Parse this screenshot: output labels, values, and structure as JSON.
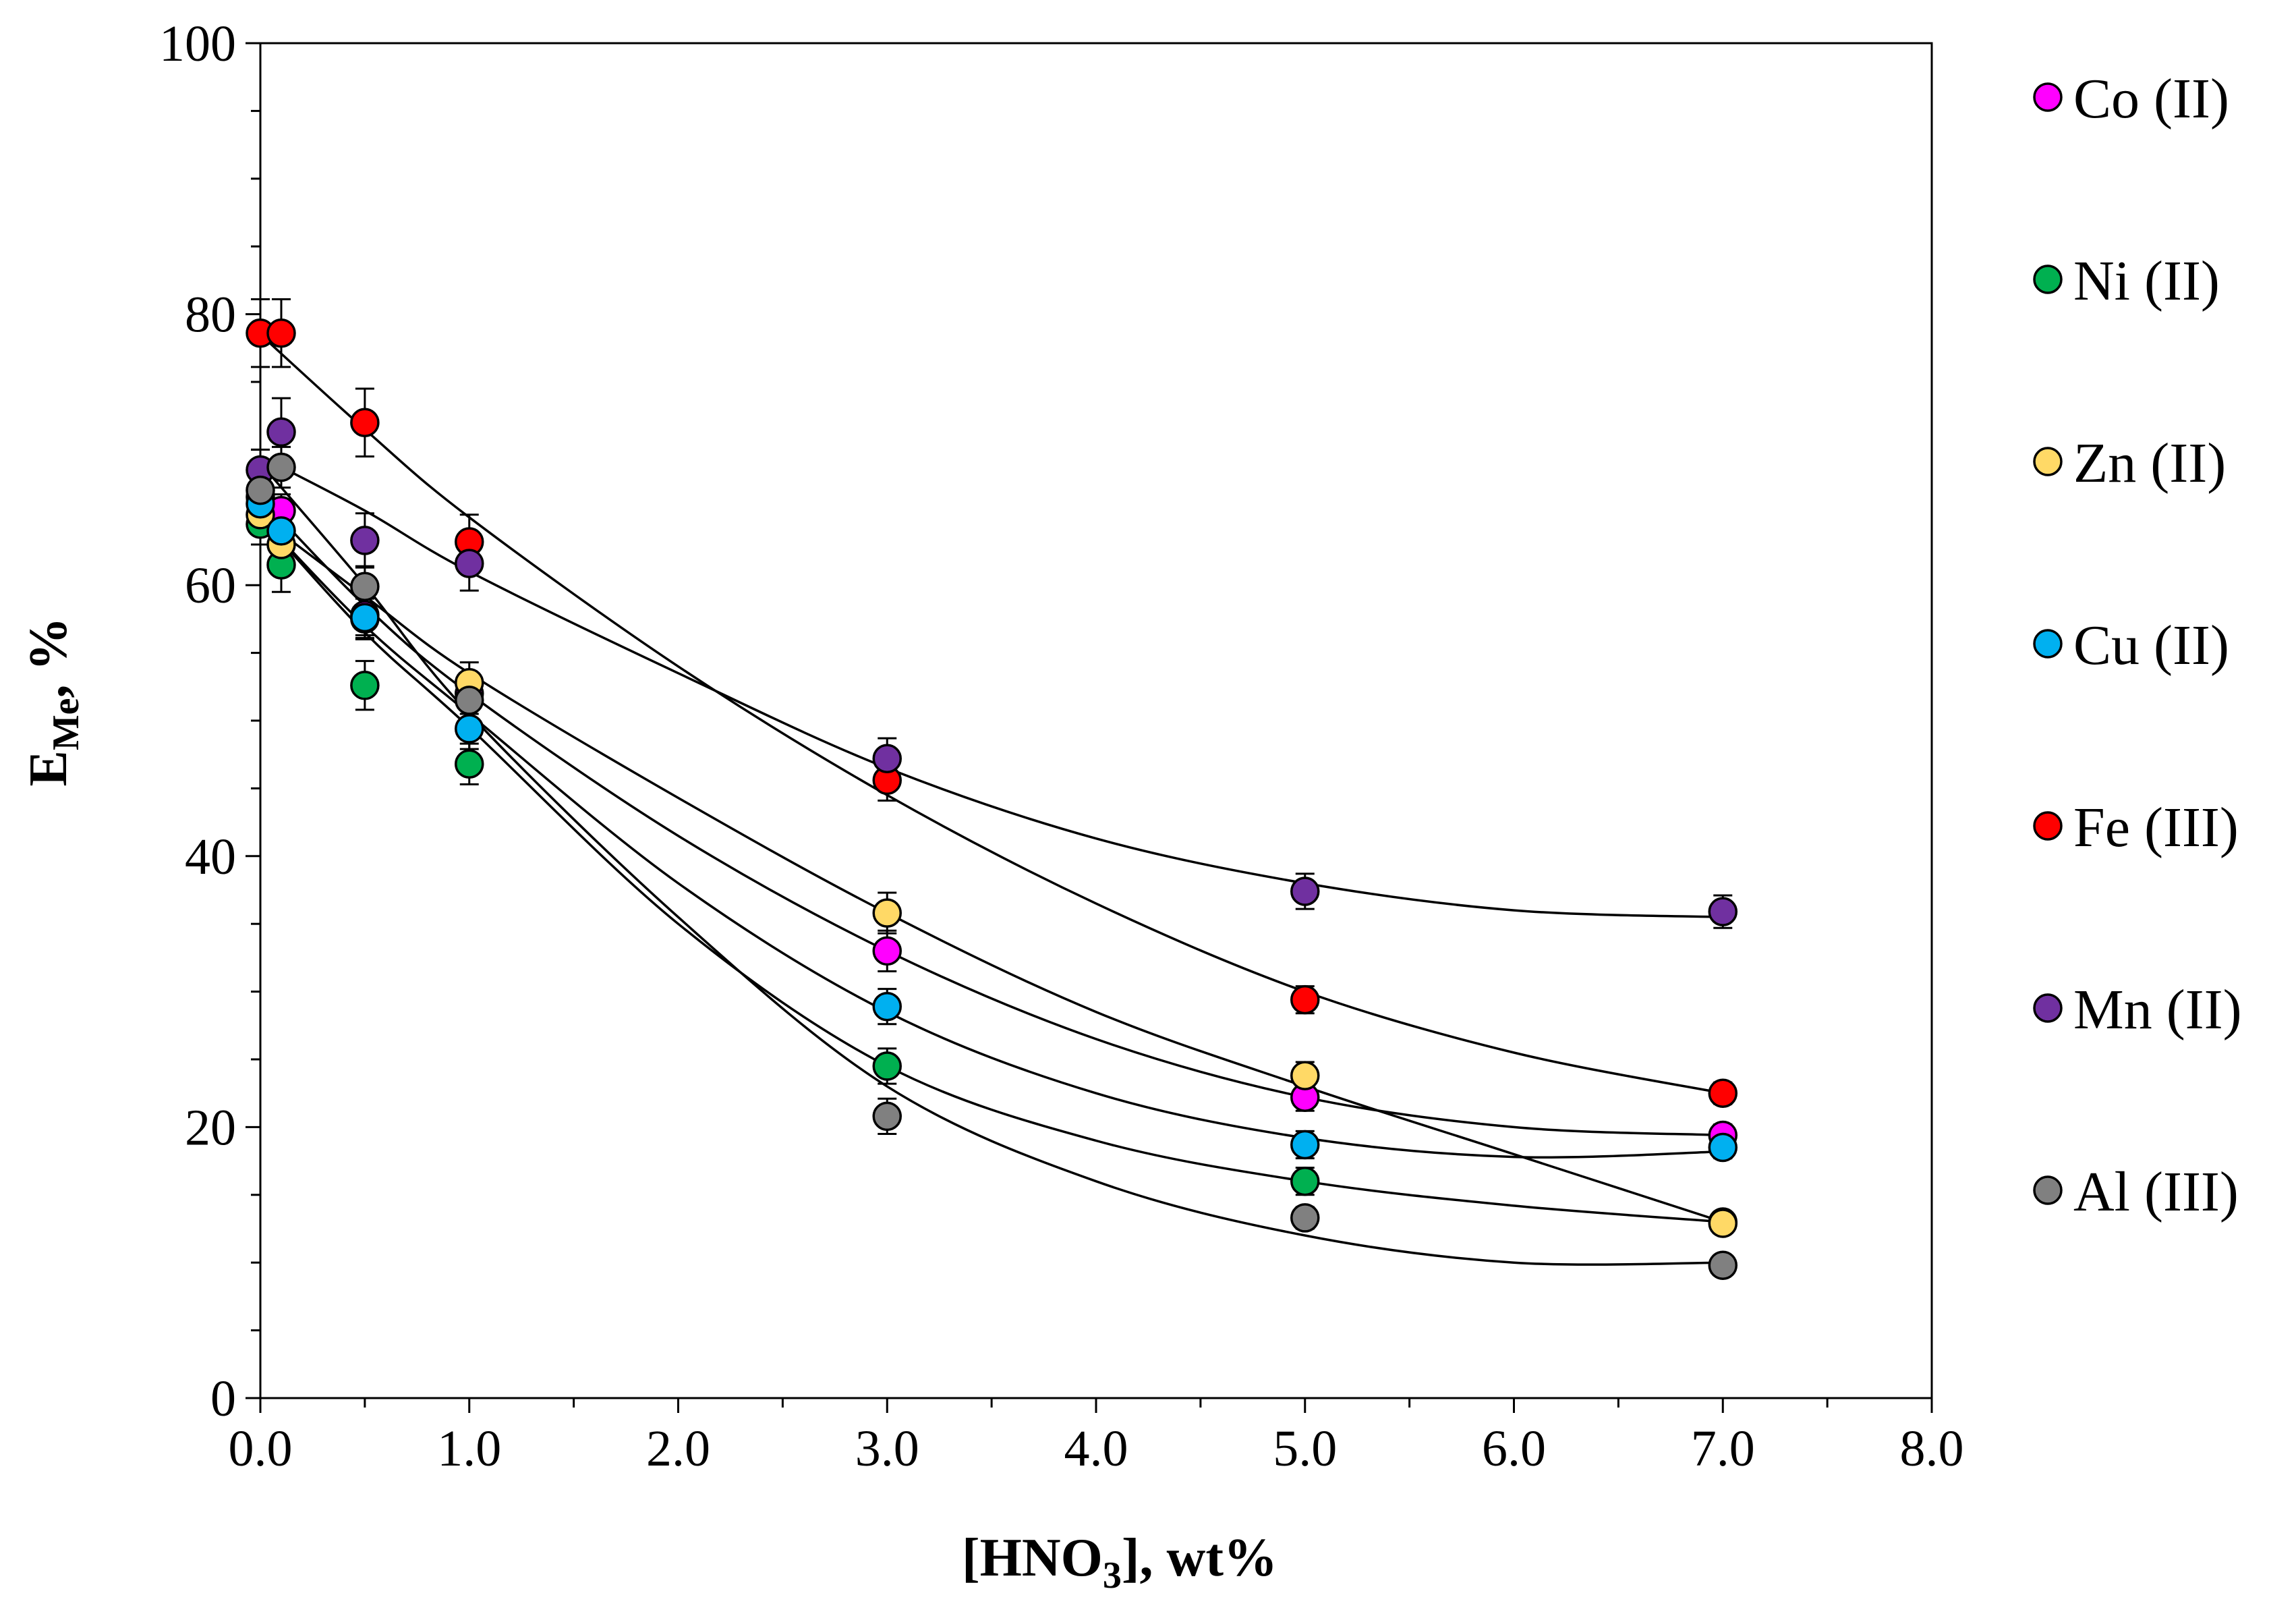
{
  "chart_data": {
    "type": "scatter",
    "title": "",
    "xlabel": {
      "main": "[HNO",
      "sub": "3",
      "tail": "], wt%"
    },
    "ylabel": {
      "main": "E",
      "sub": "Me",
      "tail": ", %"
    },
    "xlim": [
      0,
      8
    ],
    "ylim": [
      0,
      100
    ],
    "x_ticks": [
      "0.0",
      "1.0",
      "2.0",
      "3.0",
      "4.0",
      "5.0",
      "6.0",
      "7.0",
      "8.0"
    ],
    "y_ticks": [
      "0",
      "20",
      "40",
      "60",
      "80",
      "100"
    ],
    "legend_position": "right",
    "series": [
      {
        "name": "Co (II)",
        "color": "#ff00ff",
        "x": [
          0,
          0.1,
          0.5,
          1,
          3,
          5,
          7
        ],
        "y": [
          66.5,
          65.5,
          57.8,
          52.0,
          33.0,
          22.2,
          19.4
        ],
        "err": [
          1.2,
          1.2,
          1.5,
          1.5,
          1.5,
          1.0,
          0.8
        ],
        "fit": [
          [
            0,
            66.5
          ],
          [
            0.5,
            58.5
          ],
          [
            1,
            52.0
          ],
          [
            2,
            41.5
          ],
          [
            3,
            33.0
          ],
          [
            4,
            26.5
          ],
          [
            5,
            22.2
          ],
          [
            6,
            20.0
          ],
          [
            7,
            19.4
          ]
        ]
      },
      {
        "name": "Ni (II)",
        "color": "#00b050",
        "x": [
          0,
          0.1,
          0.5,
          1,
          3,
          5,
          7
        ],
        "y": [
          64.5,
          61.5,
          52.6,
          46.8,
          24.5,
          16.0,
          13.0
        ],
        "err": [
          1.5,
          2.0,
          1.8,
          1.5,
          1.3,
          1.0,
          0.6
        ],
        "fit": [
          [
            0,
            65.0
          ],
          [
            0.5,
            56.5
          ],
          [
            1,
            49.5
          ],
          [
            2,
            35.0
          ],
          [
            3,
            24.5
          ],
          [
            4,
            19.0
          ],
          [
            5,
            16.0
          ],
          [
            6,
            14.2
          ],
          [
            7,
            13.0
          ]
        ]
      },
      {
        "name": "Zn (II)",
        "color": "#ffd966",
        "x": [
          0,
          0.1,
          0.5,
          1,
          3,
          5,
          7
        ],
        "y": [
          65.2,
          63.0,
          57.5,
          52.8,
          35.8,
          23.8,
          12.9
        ],
        "err": [
          1.0,
          1.2,
          1.5,
          1.5,
          1.5,
          1.0,
          0.6
        ],
        "fit": [
          [
            0,
            65.0
          ],
          [
            0.5,
            59.2
          ],
          [
            1,
            53.5
          ],
          [
            2,
            44.3
          ],
          [
            3,
            35.8
          ],
          [
            4,
            28.5
          ],
          [
            5,
            23.0
          ],
          [
            6,
            18.0
          ],
          [
            7,
            13.0
          ]
        ]
      },
      {
        "name": "Cu (II)",
        "color": "#00b0f0",
        "x": [
          0,
          0.1,
          0.5,
          1,
          3,
          5,
          7
        ],
        "y": [
          66.0,
          64.0,
          57.6,
          49.4,
          28.9,
          18.7,
          18.5
        ],
        "err": [
          1.2,
          1.2,
          1.5,
          1.5,
          1.3,
          1.0,
          0.8
        ],
        "fit": [
          [
            0,
            65.0
          ],
          [
            0.5,
            57.0
          ],
          [
            1,
            50.5
          ],
          [
            2,
            38.0
          ],
          [
            3,
            28.5
          ],
          [
            4,
            22.5
          ],
          [
            5,
            19.2
          ],
          [
            6,
            17.8
          ],
          [
            7,
            18.2
          ]
        ]
      },
      {
        "name": "Fe (III)",
        "color": "#ff0000",
        "x": [
          0,
          0.1,
          0.5,
          1,
          3,
          5,
          7
        ],
        "y": [
          78.6,
          78.6,
          72.0,
          63.2,
          45.6,
          29.4,
          22.5
        ],
        "err": [
          2.5,
          2.5,
          2.5,
          2.0,
          1.5,
          1.0,
          0.8
        ],
        "fit": [
          [
            0,
            78.5
          ],
          [
            0.5,
            71.5
          ],
          [
            1,
            65.0
          ],
          [
            2,
            54.0
          ],
          [
            3,
            44.5
          ],
          [
            4,
            36.5
          ],
          [
            5,
            30.0
          ],
          [
            6,
            25.5
          ],
          [
            7,
            22.5
          ]
        ]
      },
      {
        "name": "Mn (II)",
        "color": "#7030a0",
        "x": [
          0,
          0.1,
          0.5,
          1,
          3,
          5,
          7
        ],
        "y": [
          68.5,
          71.3,
          63.3,
          61.6,
          47.2,
          37.4,
          35.9
        ],
        "err": [
          1.5,
          2.5,
          2.0,
          2.0,
          1.5,
          1.3,
          1.2
        ],
        "fit": [
          [
            0,
            69.5
          ],
          [
            0.5,
            65.5
          ],
          [
            1,
            61.0
          ],
          [
            2,
            53.5
          ],
          [
            3,
            46.5
          ],
          [
            4,
            41.3
          ],
          [
            5,
            38.0
          ],
          [
            6,
            36.0
          ],
          [
            7,
            35.5
          ]
        ]
      },
      {
        "name": "Al (III)",
        "color": "#808080",
        "x": [
          0,
          0.1,
          0.5,
          1,
          3,
          5,
          7
        ],
        "y": [
          67.0,
          68.7,
          59.9,
          51.5,
          20.8,
          13.3,
          9.8
        ],
        "err": [
          1.5,
          1.5,
          1.5,
          1.5,
          1.3,
          0.8,
          0.5
        ],
        "fit": [
          [
            0,
            69.0
          ],
          [
            0.5,
            60.0
          ],
          [
            1,
            50.5
          ],
          [
            2,
            35.5
          ],
          [
            3,
            23.0
          ],
          [
            4,
            16.0
          ],
          [
            5,
            12.0
          ],
          [
            6,
            10.0
          ],
          [
            7,
            10.0
          ]
        ]
      }
    ]
  }
}
